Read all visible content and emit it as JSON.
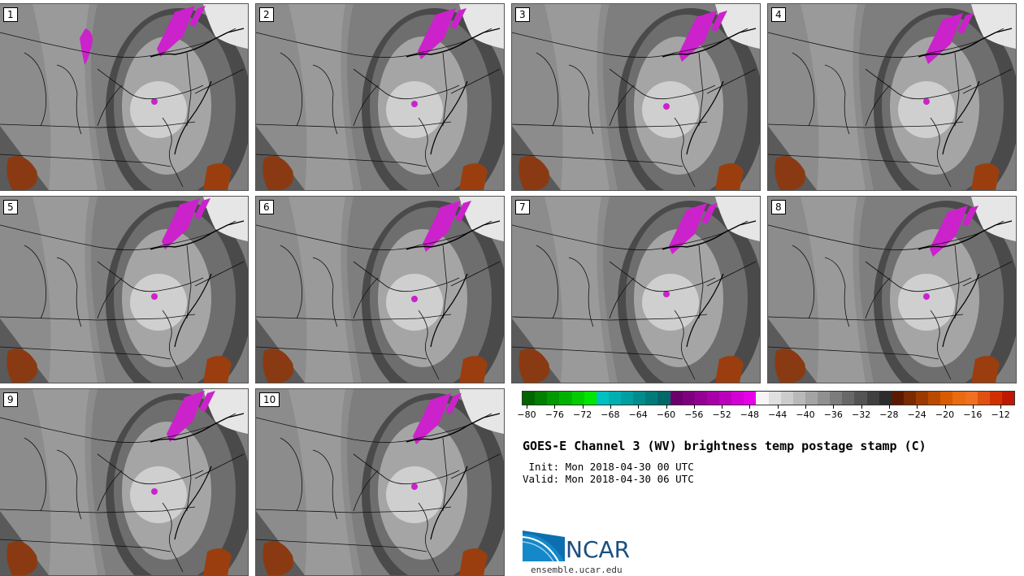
{
  "panels": [
    "1",
    "2",
    "3",
    "4",
    "5",
    "6",
    "7",
    "8",
    "9",
    "10"
  ],
  "colorbar": {
    "colors": [
      "#006400",
      "#007f00",
      "#009900",
      "#00b300",
      "#00cc00",
      "#00e600",
      "#00c0c0",
      "#00b0b0",
      "#009e9e",
      "#008c8c",
      "#007a7a",
      "#006868",
      "#6b006b",
      "#7f007f",
      "#940094",
      "#a800a8",
      "#bc00bc",
      "#d400d4",
      "#e800e8",
      "#f5f5f5",
      "#e0e0e0",
      "#cccccc",
      "#b8b8b8",
      "#a4a4a4",
      "#909090",
      "#7c7c7c",
      "#686868",
      "#545454",
      "#404040",
      "#2c2c2c",
      "#5a1a00",
      "#7a2a00",
      "#9a3a00",
      "#ba4a00",
      "#da5a00",
      "#ea6a10",
      "#f07020",
      "#e05010",
      "#d03000",
      "#c01800"
    ],
    "tick_labels": [
      "−80",
      "−76",
      "−72",
      "−68",
      "−64",
      "−60",
      "−56",
      "−52",
      "−48",
      "−44",
      "−40",
      "−36",
      "−32",
      "−28",
      "−24",
      "−20",
      "−16",
      "−12"
    ]
  },
  "title": "GOES-E Channel 3 (WV) brightness temp postage stamp (C)",
  "init": " Init: Mon 2018-04-30 00 UTC",
  "valid": "Valid: Mon 2018-04-30 06 UTC",
  "logo": {
    "text": "NCAR",
    "url": "ensemble.ucar.edu",
    "color": "#1a4f80"
  }
}
